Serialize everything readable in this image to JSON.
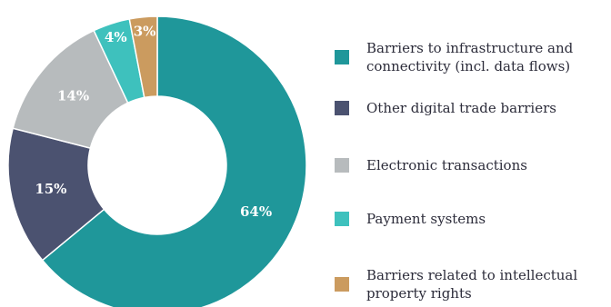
{
  "chart_data": {
    "type": "pie",
    "variant": "donut",
    "categories": [
      "Barriers to infrastructure and connectivity (incl. data flows)",
      "Other digital trade barriers",
      "Electronic transactions",
      "Payment systems",
      "Barriers related to intellectual property rights"
    ],
    "values": [
      64,
      15,
      14,
      4,
      3
    ],
    "value_labels": [
      "64%",
      "15%",
      "14%",
      "4%",
      "3%"
    ],
    "colors": [
      "#1f979a",
      "#4b5270",
      "#b7bbbd",
      "#3ec1bd",
      "#cb9b5f"
    ],
    "label_colors": [
      "#ffffff",
      "#ffffff",
      "#ffffff",
      "#ffffff",
      "#ffffff"
    ],
    "legend_position": "right",
    "legend": [
      {
        "label": "Barriers to infrastructure and\nconnectivity (incl. data flows)",
        "color": "#1f979a"
      },
      {
        "label": "Other digital trade barriers",
        "color": "#4b5270"
      },
      {
        "label": "Electronic transactions",
        "color": "#b7bbbd"
      },
      {
        "label": "Payment systems",
        "color": "#3ec1bd"
      },
      {
        "label": "Barriers related to intellectual\nproperty rights",
        "color": "#cb9b5f"
      }
    ]
  }
}
